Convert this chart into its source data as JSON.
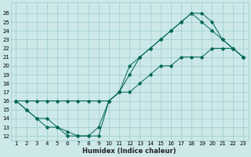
{
  "xlabel": "Humidex (Indice chaleur)",
  "bg_color": "#cce8e8",
  "grid_color": "#99cccc",
  "line_color": "#006655",
  "xlim": [
    0.5,
    23.5
  ],
  "ylim": [
    11.5,
    27.2
  ],
  "xticks": [
    1,
    2,
    3,
    4,
    5,
    6,
    7,
    8,
    9,
    10,
    11,
    12,
    13,
    14,
    15,
    16,
    17,
    18,
    19,
    20,
    21,
    22,
    23
  ],
  "yticks": [
    12,
    13,
    14,
    15,
    16,
    17,
    18,
    19,
    20,
    21,
    22,
    23,
    24,
    25,
    26
  ],
  "line1_x": [
    1,
    2,
    3,
    4,
    5,
    6,
    7,
    8,
    9,
    10,
    11,
    12,
    13,
    14,
    15,
    16,
    17,
    18,
    19,
    20,
    21,
    22,
    23
  ],
  "line1_y": [
    16,
    15,
    14,
    14,
    13,
    12,
    12,
    12,
    12,
    16,
    17,
    20,
    21,
    22,
    23,
    24,
    25,
    26,
    26,
    25,
    23,
    22,
    21
  ],
  "line2_x": [
    1,
    2,
    3,
    4,
    5,
    6,
    7,
    8,
    9,
    10,
    11,
    12,
    13,
    14,
    15,
    16,
    17,
    18,
    19,
    20,
    21,
    22,
    23
  ],
  "line2_y": [
    16,
    15,
    14,
    13,
    13,
    12.5,
    12,
    12,
    13,
    16,
    17,
    19,
    21,
    22,
    23,
    24,
    25,
    26,
    25,
    24,
    23,
    22,
    21
  ],
  "line3_x": [
    1,
    2,
    3,
    4,
    5,
    6,
    7,
    8,
    9,
    10,
    11,
    12,
    13,
    14,
    15,
    16,
    17,
    18,
    19,
    20,
    21,
    22,
    23
  ],
  "line3_y": [
    16,
    16,
    16,
    16,
    16,
    16,
    16,
    16,
    16,
    16,
    17,
    17,
    18,
    19,
    20,
    20,
    21,
    21,
    21,
    22,
    22,
    22,
    21
  ]
}
